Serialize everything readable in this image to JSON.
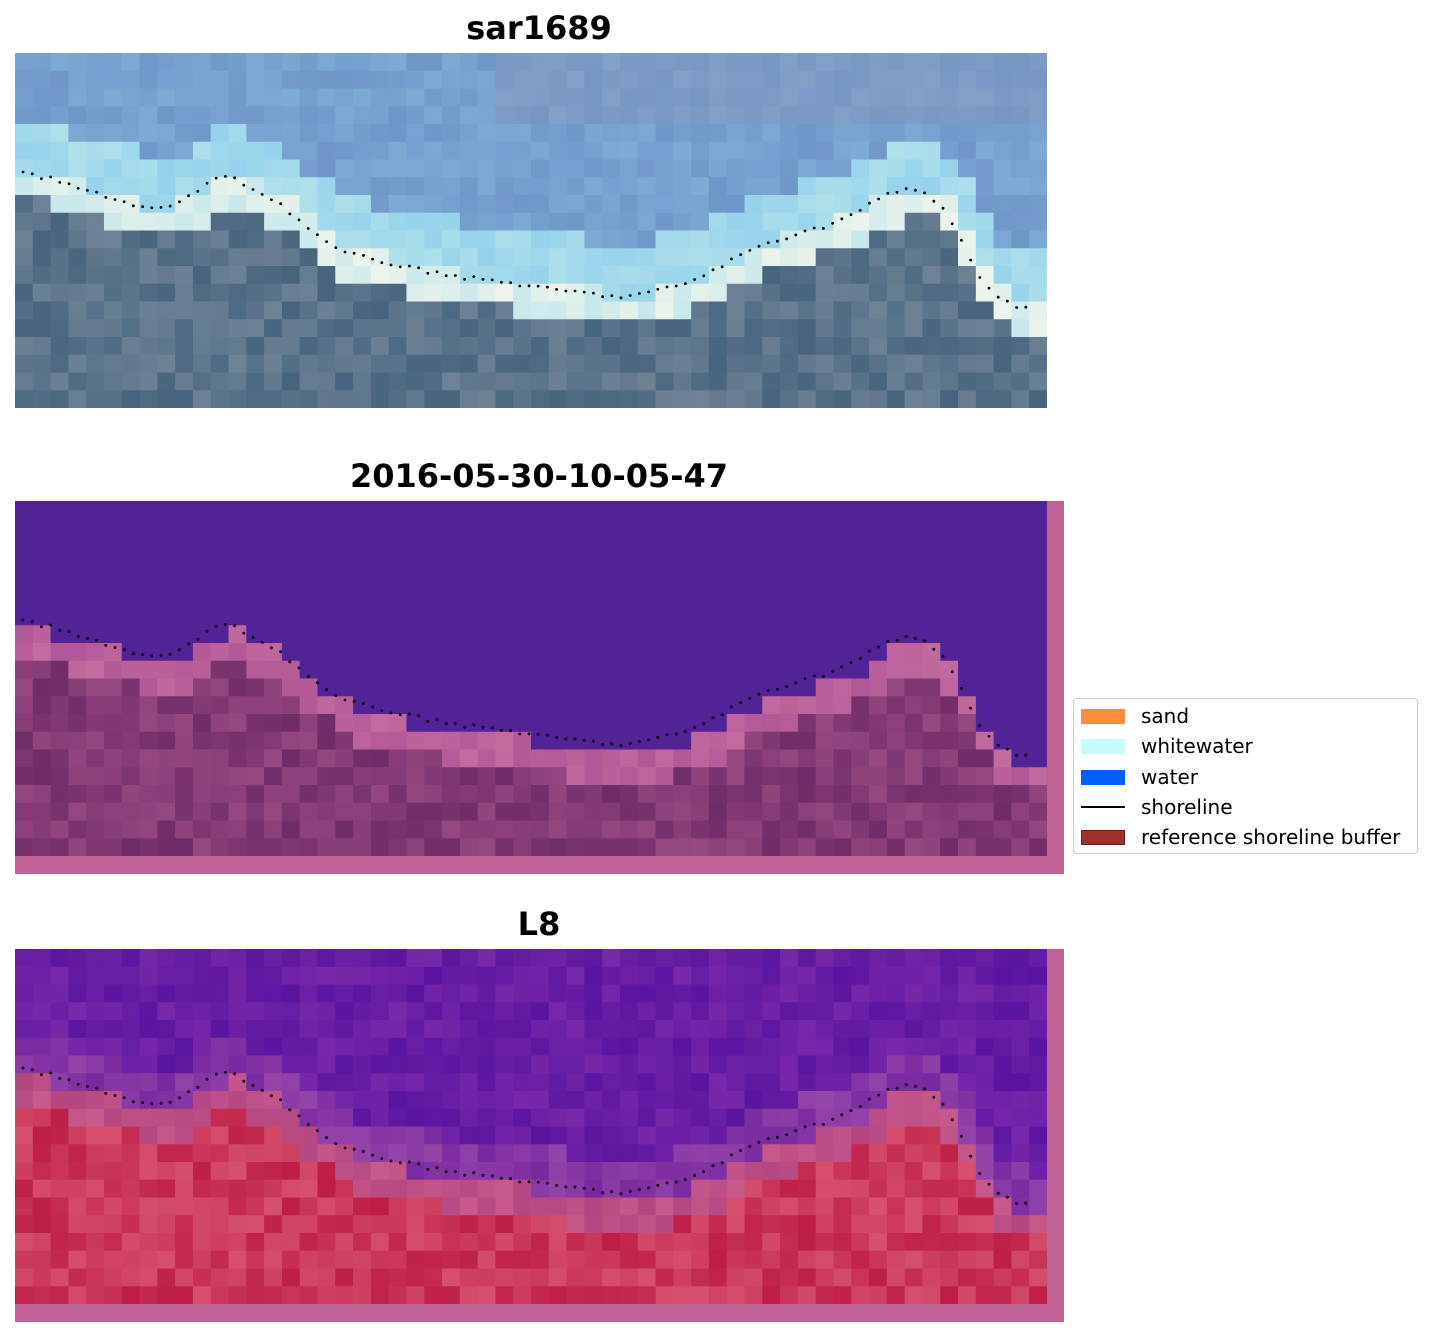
{
  "panels": [
    {
      "title": "sar1689",
      "style": "rgb"
    },
    {
      "title": "2016-05-30-10-05-47",
      "style": "classified"
    },
    {
      "title": "L8",
      "style": "falsecolor"
    }
  ],
  "legend": {
    "items": [
      {
        "label": "sand",
        "kind": "patch",
        "color": "#ff8c3c"
      },
      {
        "label": "whitewater",
        "kind": "patch",
        "color": "#c8fcfc"
      },
      {
        "label": "water",
        "kind": "patch",
        "color": "#0060ff"
      },
      {
        "label": "shoreline",
        "kind": "line",
        "color": "#000000"
      },
      {
        "label": "reference shoreline buffer",
        "kind": "patch",
        "color": "#a0302c"
      }
    ]
  },
  "colors": {
    "water_class": "#522297",
    "buffer_overlay": "#bf6394",
    "shoreline_points": "#000000"
  }
}
